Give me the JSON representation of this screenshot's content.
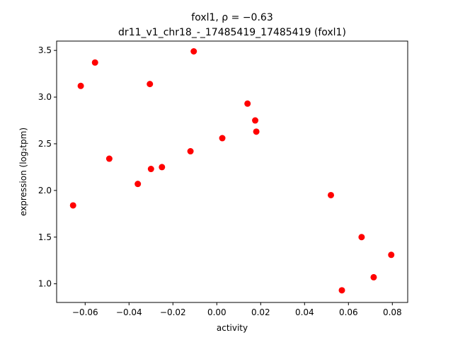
{
  "chart_data": {
    "type": "scatter",
    "title_line1": "foxl1, ρ = −0.63",
    "title_line2": "dr11_v1_chr18_-_17485419_17485419 (foxl1)",
    "xlabel": "activity",
    "ylabel": "expression (log₂tpm)",
    "xlim": [
      -0.073,
      0.087
    ],
    "ylim": [
      0.8,
      3.6
    ],
    "xticks": [
      -0.06,
      -0.04,
      -0.02,
      0.0,
      0.02,
      0.04,
      0.06,
      0.08
    ],
    "xtick_labels": [
      "−0.06",
      "−0.04",
      "−0.02",
      "0.00",
      "0.02",
      "0.04",
      "0.06",
      "0.08"
    ],
    "yticks": [
      1.0,
      1.5,
      2.0,
      2.5,
      3.0,
      3.5
    ],
    "ytick_labels": [
      "1.0",
      "1.5",
      "2.0",
      "2.5",
      "3.0",
      "3.5"
    ],
    "grid": false,
    "marker_color": "#ff0000",
    "points": [
      {
        "x": -0.0655,
        "y": 1.84
      },
      {
        "x": -0.062,
        "y": 3.12
      },
      {
        "x": -0.0555,
        "y": 3.37
      },
      {
        "x": -0.049,
        "y": 2.34
      },
      {
        "x": -0.036,
        "y": 2.07
      },
      {
        "x": -0.0305,
        "y": 3.14
      },
      {
        "x": -0.03,
        "y": 2.23
      },
      {
        "x": -0.025,
        "y": 2.25
      },
      {
        "x": -0.012,
        "y": 2.42
      },
      {
        "x": -0.0105,
        "y": 3.49
      },
      {
        "x": 0.0025,
        "y": 2.56
      },
      {
        "x": 0.014,
        "y": 2.93
      },
      {
        "x": 0.0175,
        "y": 2.75
      },
      {
        "x": 0.018,
        "y": 2.63
      },
      {
        "x": 0.052,
        "y": 1.95
      },
      {
        "x": 0.057,
        "y": 0.93
      },
      {
        "x": 0.066,
        "y": 1.5
      },
      {
        "x": 0.0715,
        "y": 1.07
      },
      {
        "x": 0.0795,
        "y": 1.31
      }
    ]
  }
}
